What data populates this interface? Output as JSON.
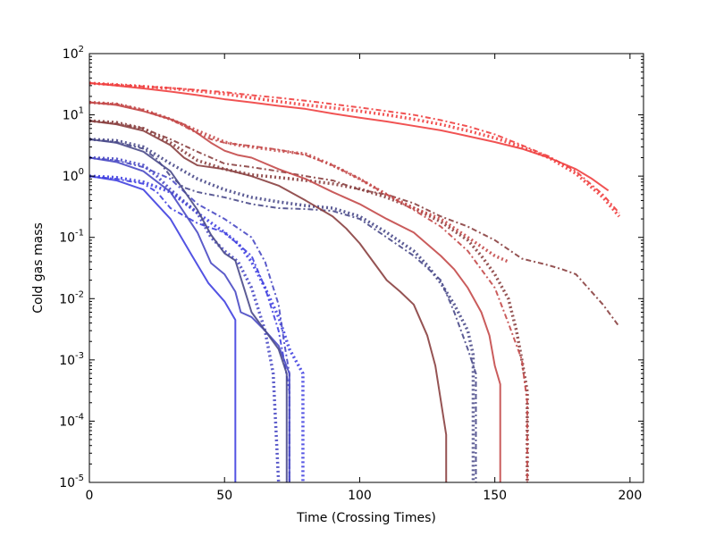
{
  "chart_data": {
    "type": "line",
    "title": "",
    "xlabel": "Time (Crossing Times)",
    "ylabel": "Cold gas mass",
    "xlim": [
      0,
      205
    ],
    "ylim": [
      1e-05,
      100
    ],
    "yscale": "log",
    "grid": false,
    "x_ticks": [
      0,
      50,
      100,
      150,
      200
    ],
    "y_ticks": [
      {
        "base": "10",
        "exp": "-5",
        "value": 1e-05
      },
      {
        "base": "10",
        "exp": "-4",
        "value": 0.0001
      },
      {
        "base": "10",
        "exp": "-3",
        "value": 0.001
      },
      {
        "base": "10",
        "exp": "-2",
        "value": 0.01
      },
      {
        "base": "10",
        "exp": "-1",
        "value": 0.1
      },
      {
        "base": "10",
        "exp": "0",
        "value": 1
      },
      {
        "base": "10",
        "exp": "1",
        "value": 10
      },
      {
        "base": "10",
        "exp": "2",
        "value": 100
      }
    ],
    "series": [
      {
        "color": "#4040e0",
        "style": "solid",
        "x": [
          0,
          10,
          20,
          30,
          38,
          44,
          50,
          54,
          54
        ],
        "y": [
          1.0,
          0.85,
          0.6,
          0.2,
          0.05,
          0.018,
          0.009,
          0.0045,
          1e-05
        ]
      },
      {
        "color": "#4040e0",
        "style": "dotted",
        "x": [
          0,
          10,
          20,
          30,
          40,
          50,
          55,
          60,
          65,
          70,
          74,
          79,
          79
        ],
        "y": [
          1.0,
          0.95,
          0.8,
          0.55,
          0.25,
          0.12,
          0.08,
          0.04,
          0.015,
          0.005,
          0.0015,
          0.0006,
          1e-05
        ]
      },
      {
        "color": "#4040e0",
        "style": "dashdot",
        "x": [
          0,
          10,
          20,
          25,
          30,
          40,
          50,
          60,
          65,
          70,
          72,
          74,
          74
        ],
        "y": [
          1.0,
          0.9,
          0.75,
          0.55,
          0.3,
          0.17,
          0.12,
          0.05,
          0.015,
          0.003,
          0.001,
          0.0003,
          1e-05
        ]
      },
      {
        "color": "#4a4ac4",
        "style": "solid",
        "x": [
          0,
          10,
          20,
          30,
          40,
          45,
          50,
          54,
          56,
          60,
          65,
          70,
          74,
          74
        ],
        "y": [
          2.0,
          1.7,
          1.2,
          0.55,
          0.12,
          0.038,
          0.025,
          0.013,
          0.006,
          0.005,
          0.003,
          0.0017,
          0.0006,
          1e-05
        ]
      },
      {
        "color": "#4a4ac4",
        "style": "dotted",
        "x": [
          0,
          10,
          20,
          25,
          30,
          40,
          45,
          50,
          55,
          60,
          65,
          68,
          70
        ],
        "y": [
          2.0,
          1.9,
          1.5,
          1.0,
          0.6,
          0.25,
          0.1,
          0.06,
          0.04,
          0.015,
          0.003,
          0.0006,
          1e-05
        ]
      },
      {
        "color": "#4a4ac4",
        "style": "dashdot",
        "x": [
          0,
          10,
          20,
          30,
          40,
          50,
          60,
          65,
          70,
          72,
          74,
          74
        ],
        "y": [
          2.0,
          1.8,
          1.4,
          0.9,
          0.35,
          0.2,
          0.1,
          0.04,
          0.008,
          0.002,
          0.0006,
          1e-05
        ]
      },
      {
        "color": "#4a4a8a",
        "style": "solid",
        "x": [
          0,
          10,
          20,
          30,
          40,
          45,
          50,
          54,
          60,
          65,
          70,
          73,
          73
        ],
        "y": [
          4.0,
          3.5,
          2.5,
          1.2,
          0.28,
          0.11,
          0.055,
          0.042,
          0.006,
          0.003,
          0.0015,
          0.0006,
          1e-05
        ]
      },
      {
        "color": "#4a4a8a",
        "style": "dotted",
        "x": [
          0,
          10,
          20,
          30,
          40,
          50,
          60,
          70,
          80,
          90,
          100,
          110,
          120,
          125,
          130,
          135,
          140,
          142,
          142
        ],
        "y": [
          4.0,
          3.8,
          3.0,
          1.6,
          0.9,
          0.6,
          0.45,
          0.38,
          0.33,
          0.3,
          0.22,
          0.12,
          0.06,
          0.035,
          0.018,
          0.008,
          0.003,
          0.0012,
          1e-05
        ]
      },
      {
        "color": "#4a4a8a",
        "style": "dashdot",
        "x": [
          0,
          10,
          20,
          25,
          30,
          35,
          40,
          50,
          60,
          70,
          80,
          85,
          90,
          100,
          110,
          120,
          130,
          135,
          140,
          143,
          143
        ],
        "y": [
          4.0,
          3.6,
          2.8,
          1.9,
          1.0,
          0.65,
          0.55,
          0.45,
          0.35,
          0.3,
          0.29,
          0.28,
          0.27,
          0.2,
          0.1,
          0.05,
          0.02,
          0.006,
          0.0015,
          0.0006,
          1e-05
        ]
      },
      {
        "color": "#8a4040",
        "style": "solid",
        "x": [
          0,
          10,
          20,
          30,
          35,
          40,
          50,
          60,
          70,
          80,
          90,
          95,
          100,
          105,
          110,
          115,
          120,
          125,
          128,
          132,
          132
        ],
        "y": [
          8.0,
          7.0,
          5.5,
          3.2,
          2.0,
          1.5,
          1.3,
          1.0,
          0.7,
          0.4,
          0.22,
          0.14,
          0.08,
          0.04,
          0.02,
          0.013,
          0.008,
          0.0025,
          0.0008,
          6e-05,
          1e-05
        ]
      },
      {
        "color": "#8a4040",
        "style": "dotted",
        "x": [
          0,
          10,
          20,
          30,
          40,
          50,
          60,
          70,
          80,
          90,
          100,
          110,
          120,
          130,
          140,
          145,
          150,
          155,
          158,
          160,
          162,
          162
        ],
        "y": [
          8.0,
          7.5,
          6.0,
          3.5,
          1.8,
          1.3,
          1.05,
          0.95,
          0.85,
          0.75,
          0.62,
          0.45,
          0.3,
          0.18,
          0.09,
          0.05,
          0.025,
          0.01,
          0.003,
          0.001,
          0.0003,
          1e-05
        ]
      },
      {
        "color": "#8a4040",
        "style": "dashdot",
        "x": [
          0,
          10,
          20,
          30,
          40,
          50,
          60,
          70,
          80,
          90,
          100,
          110,
          120,
          130,
          140,
          150,
          160,
          170,
          175,
          180,
          190,
          196
        ],
        "y": [
          8.0,
          7.2,
          6.0,
          4.0,
          2.5,
          1.6,
          1.4,
          1.2,
          1.0,
          0.85,
          0.6,
          0.5,
          0.36,
          0.22,
          0.15,
          0.09,
          0.045,
          0.035,
          0.03,
          0.025,
          0.008,
          0.0035
        ]
      },
      {
        "color": "#c44a4a",
        "style": "solid",
        "x": [
          0,
          10,
          20,
          30,
          35,
          40,
          45,
          50,
          55,
          60,
          70,
          80,
          90,
          100,
          110,
          120,
          130,
          135,
          140,
          145,
          148,
          150,
          152,
          152
        ],
        "y": [
          16.0,
          14.5,
          11.5,
          8.5,
          7.0,
          5.0,
          3.5,
          2.6,
          2.2,
          2.0,
          1.3,
          0.9,
          0.55,
          0.35,
          0.2,
          0.12,
          0.05,
          0.03,
          0.015,
          0.006,
          0.0025,
          0.0008,
          0.0004,
          1e-05
        ]
      },
      {
        "color": "#c44a4a",
        "style": "dotted",
        "x": [
          0,
          10,
          20,
          30,
          40,
          50,
          55,
          60,
          70,
          80,
          90,
          100,
          110,
          120,
          130,
          140,
          150,
          155
        ],
        "y": [
          16.0,
          15.0,
          12.0,
          8.5,
          5.5,
          3.6,
          3.2,
          3.0,
          2.6,
          2.3,
          1.5,
          0.9,
          0.5,
          0.3,
          0.2,
          0.1,
          0.05,
          0.04
        ]
      },
      {
        "color": "#c44a4a",
        "style": "dashdot",
        "x": [
          0,
          10,
          20,
          30,
          40,
          45,
          50,
          60,
          70,
          80,
          90,
          100,
          110,
          120,
          130,
          140,
          150,
          155,
          160,
          162,
          162
        ],
        "y": [
          16.0,
          15.0,
          12.0,
          8.5,
          5.0,
          4.0,
          3.5,
          3.1,
          2.7,
          2.2,
          1.5,
          0.9,
          0.5,
          0.28,
          0.15,
          0.06,
          0.015,
          0.004,
          0.001,
          0.0002,
          1e-05
        ]
      },
      {
        "color": "#f04040",
        "style": "solid",
        "x": [
          0,
          10,
          20,
          30,
          40,
          50,
          60,
          70,
          80,
          90,
          100,
          110,
          120,
          130,
          140,
          150,
          160,
          170,
          180,
          186,
          192
        ],
        "y": [
          33.0,
          30.0,
          27.0,
          24.0,
          21.0,
          18.0,
          16.0,
          14.0,
          12.5,
          10.5,
          9.0,
          7.8,
          6.6,
          5.6,
          4.5,
          3.6,
          2.8,
          2.0,
          1.3,
          0.9,
          0.58
        ]
      },
      {
        "color": "#f04040",
        "style": "dotted",
        "x": [
          0,
          10,
          20,
          30,
          40,
          50,
          60,
          70,
          80,
          90,
          100,
          110,
          120,
          130,
          140,
          150,
          160,
          170,
          180,
          190,
          196
        ],
        "y": [
          33.0,
          31.0,
          29.0,
          27.0,
          24.5,
          22.0,
          19.0,
          16.5,
          14.5,
          13.0,
          11.5,
          10.0,
          8.5,
          7.0,
          5.5,
          4.2,
          3.0,
          2.0,
          1.1,
          0.45,
          0.22
        ]
      },
      {
        "color": "#f04040",
        "style": "dashdot",
        "x": [
          0,
          10,
          20,
          30,
          40,
          50,
          60,
          70,
          80,
          90,
          100,
          110,
          120,
          130,
          140,
          150,
          160,
          170,
          180,
          190,
          196
        ],
        "y": [
          33.0,
          31.0,
          29.0,
          27.5,
          25.5,
          23.5,
          21.0,
          19.0,
          17.0,
          15.0,
          13.2,
          11.5,
          10.0,
          8.2,
          6.5,
          4.8,
          3.2,
          2.1,
          1.2,
          0.5,
          0.25
        ]
      }
    ]
  }
}
